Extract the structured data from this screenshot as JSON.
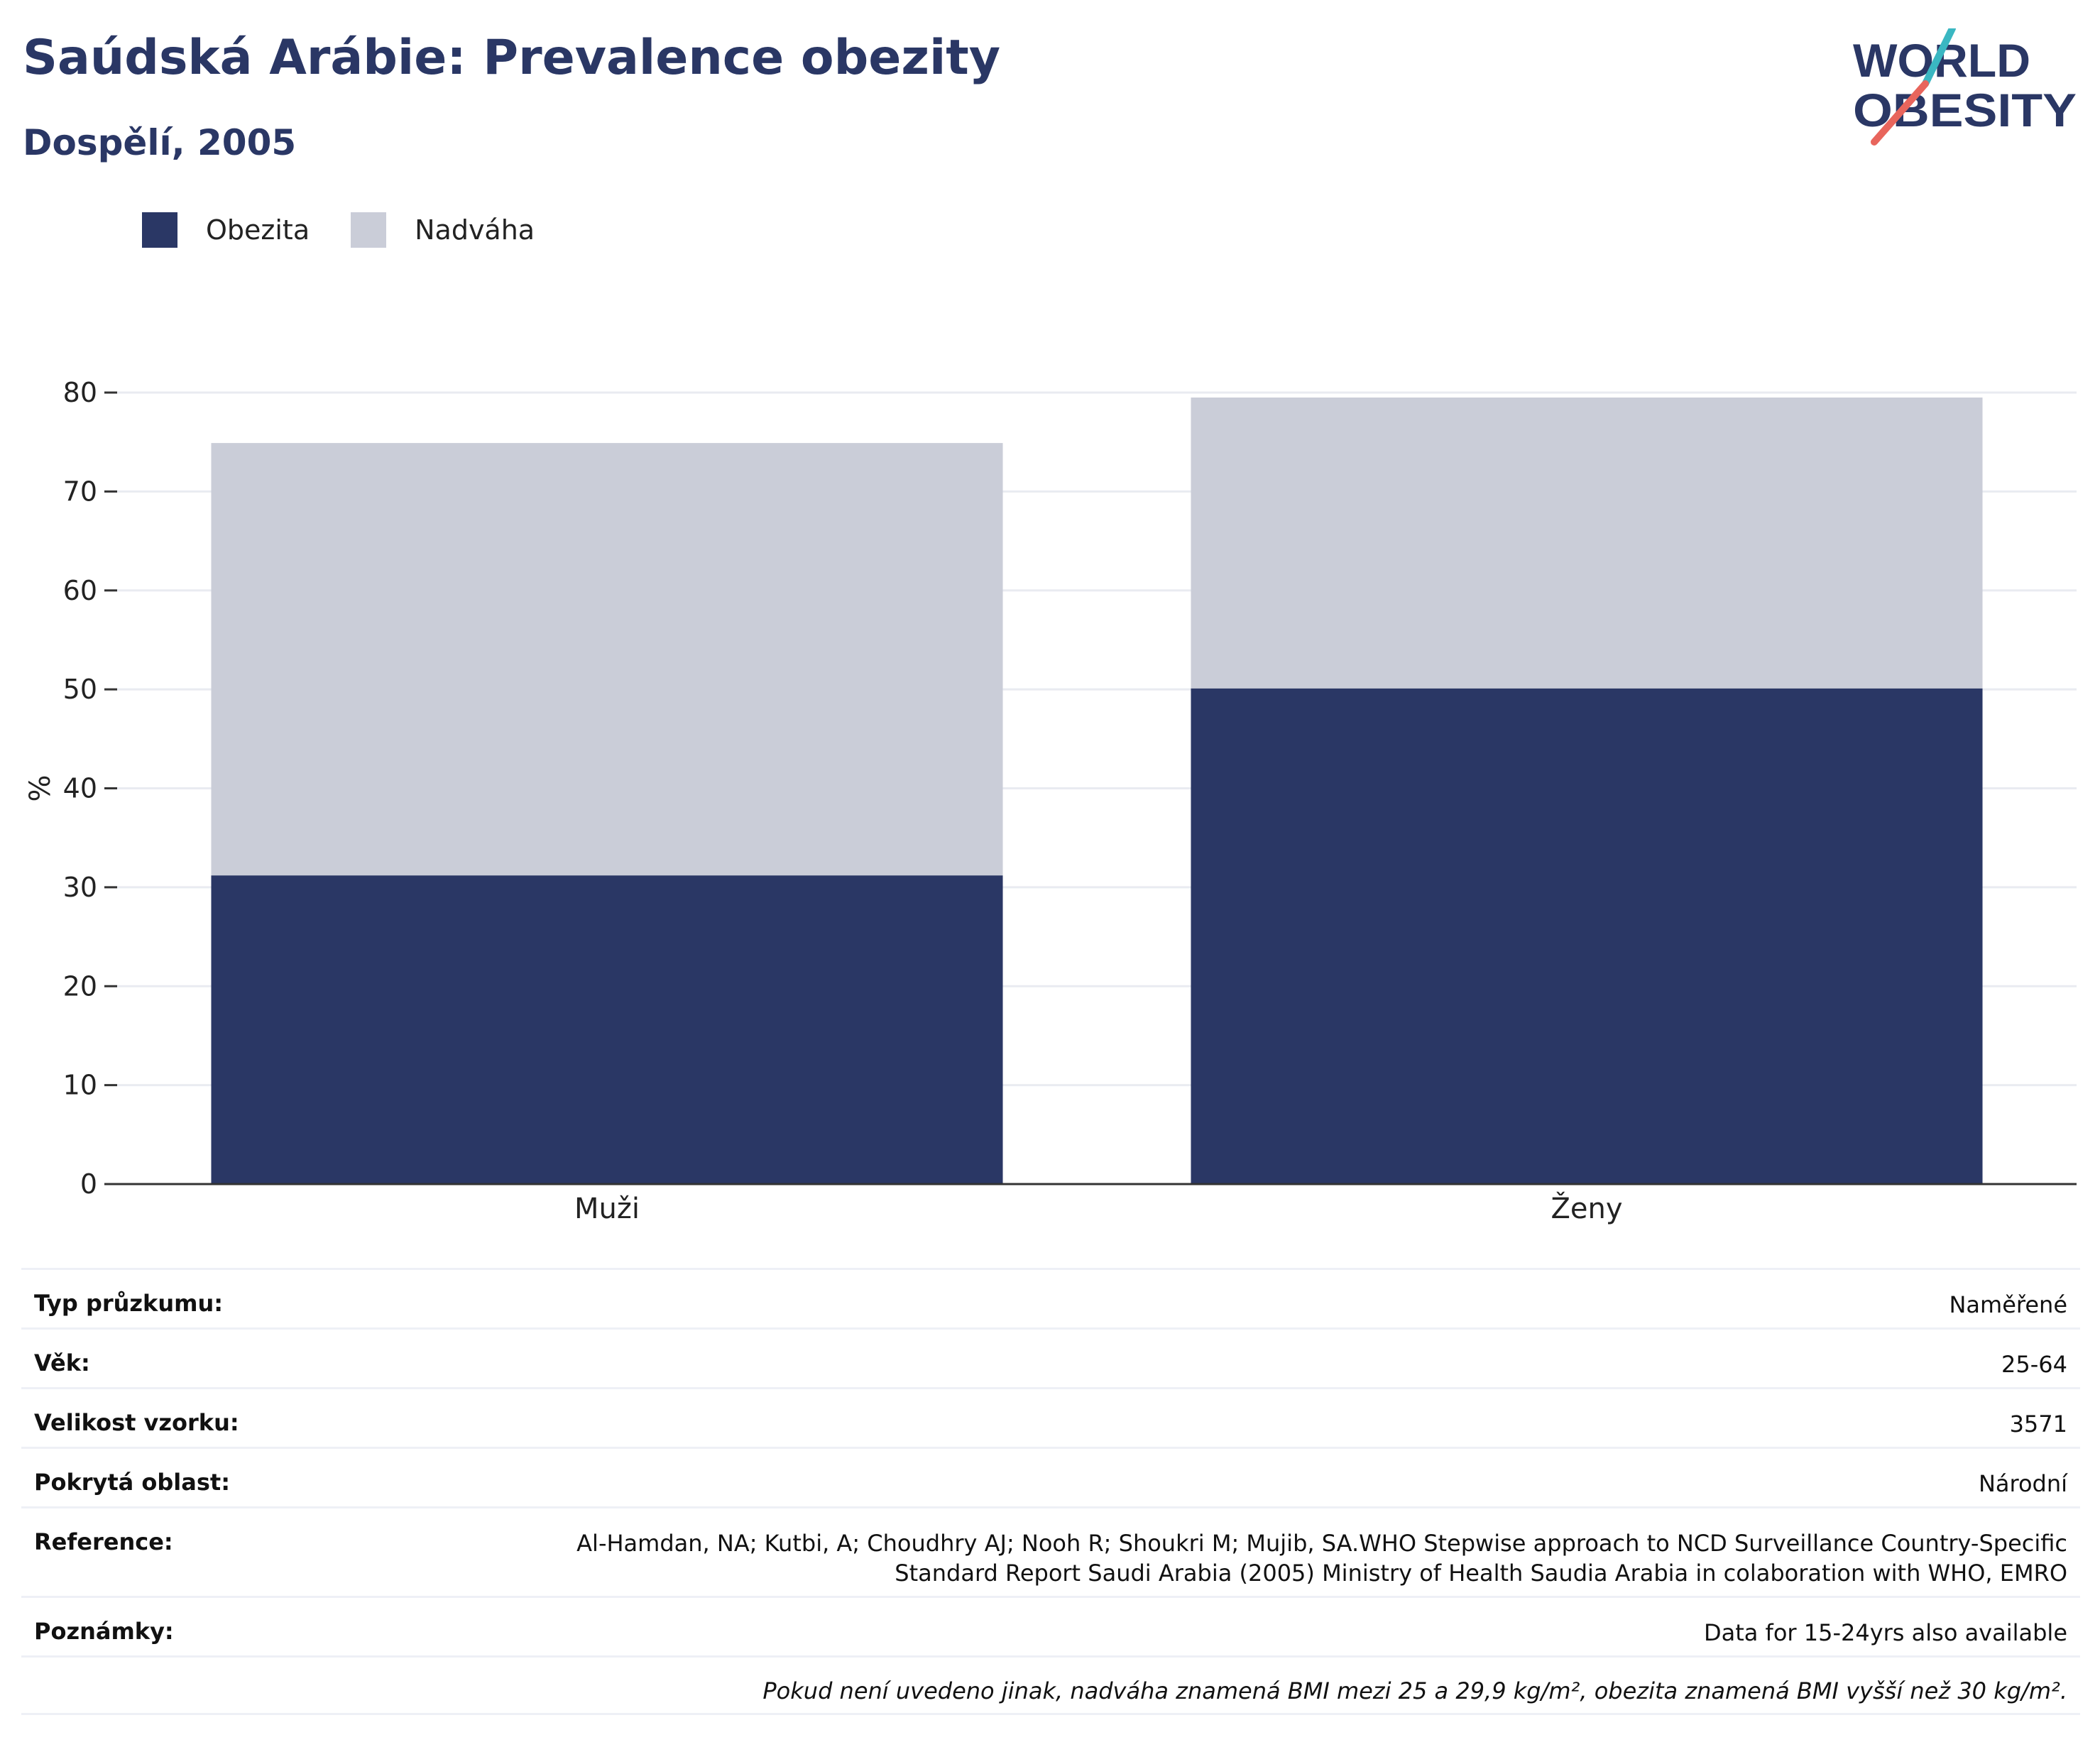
{
  "header": {
    "title": "Saúdská Arábie: Prevalence obezity",
    "subtitle": "Dospělí, 2005"
  },
  "logo": {
    "line1": "WORLD",
    "line2": "OBESITY"
  },
  "legend": [
    {
      "label": "Obezita",
      "color": "#2a3765"
    },
    {
      "label": "Nadváha",
      "color": "#cacdd8"
    }
  ],
  "chart_data": {
    "type": "bar",
    "stacked": true,
    "categories": [
      "Muži",
      "Ženy"
    ],
    "series": [
      {
        "name": "Obezita",
        "values": [
          31.2,
          50.1
        ],
        "color": "#2a3765"
      },
      {
        "name": "Nadváha",
        "values": [
          43.7,
          29.4
        ],
        "color": "#cacdd8"
      }
    ],
    "ylabel": "%",
    "ylim": [
      0,
      80
    ],
    "yticks": [
      0,
      10,
      20,
      30,
      40,
      50,
      60,
      70,
      80
    ],
    "grid": true
  },
  "info": {
    "rows": [
      {
        "key": "Typ průzkumu:",
        "value": "Naměřené"
      },
      {
        "key": "Věk:",
        "value": "25-64"
      },
      {
        "key": "Velikost vzorku:",
        "value": "3571"
      },
      {
        "key": "Pokrytá oblast:",
        "value": "Národní"
      },
      {
        "key": "Reference:",
        "value_lines": [
          "Al-Hamdan, NA; Kutbi, A; Choudhry AJ; Nooh R; Shoukri M; Mujib, SA.WHO Stepwise approach to NCD Surveillance Country-Specific",
          "Standard Report Saudi Arabia (2005) Ministry of Health Saudia Arabia in colaboration with WHO, EMRO"
        ]
      },
      {
        "key": "Poznámky:",
        "value": "Data for 15-24yrs also available"
      }
    ],
    "footnote": "Pokud není uvedeno jinak, nadváha znamená BMI mezi 25 a 29,9 kg/m², obezita znamená BMI vyšší než 30 kg/m²."
  }
}
